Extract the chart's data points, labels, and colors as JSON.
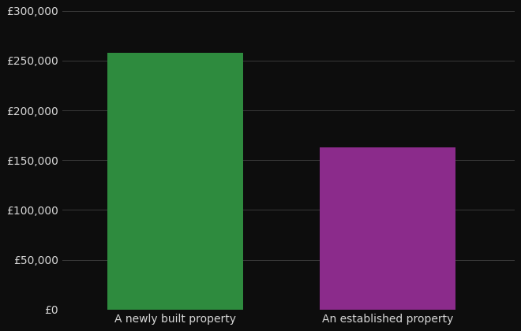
{
  "categories": [
    "A newly built property",
    "An established property"
  ],
  "values": [
    258000,
    163000
  ],
  "bar_colors": [
    "#2e8b3e",
    "#8b2b8b"
  ],
  "background_color": "#0d0d0d",
  "text_color": "#d8d8d8",
  "grid_color": "#3a3a3a",
  "ylim": [
    0,
    300000
  ],
  "yticks": [
    0,
    50000,
    100000,
    150000,
    200000,
    250000,
    300000
  ],
  "bar_width": 0.3,
  "x_positions": [
    0.25,
    0.72
  ],
  "xlim": [
    0.0,
    1.0
  ],
  "figsize": [
    6.6,
    4.2
  ],
  "dpi": 100,
  "tick_fontsize": 10,
  "xlabel_fontsize": 10
}
